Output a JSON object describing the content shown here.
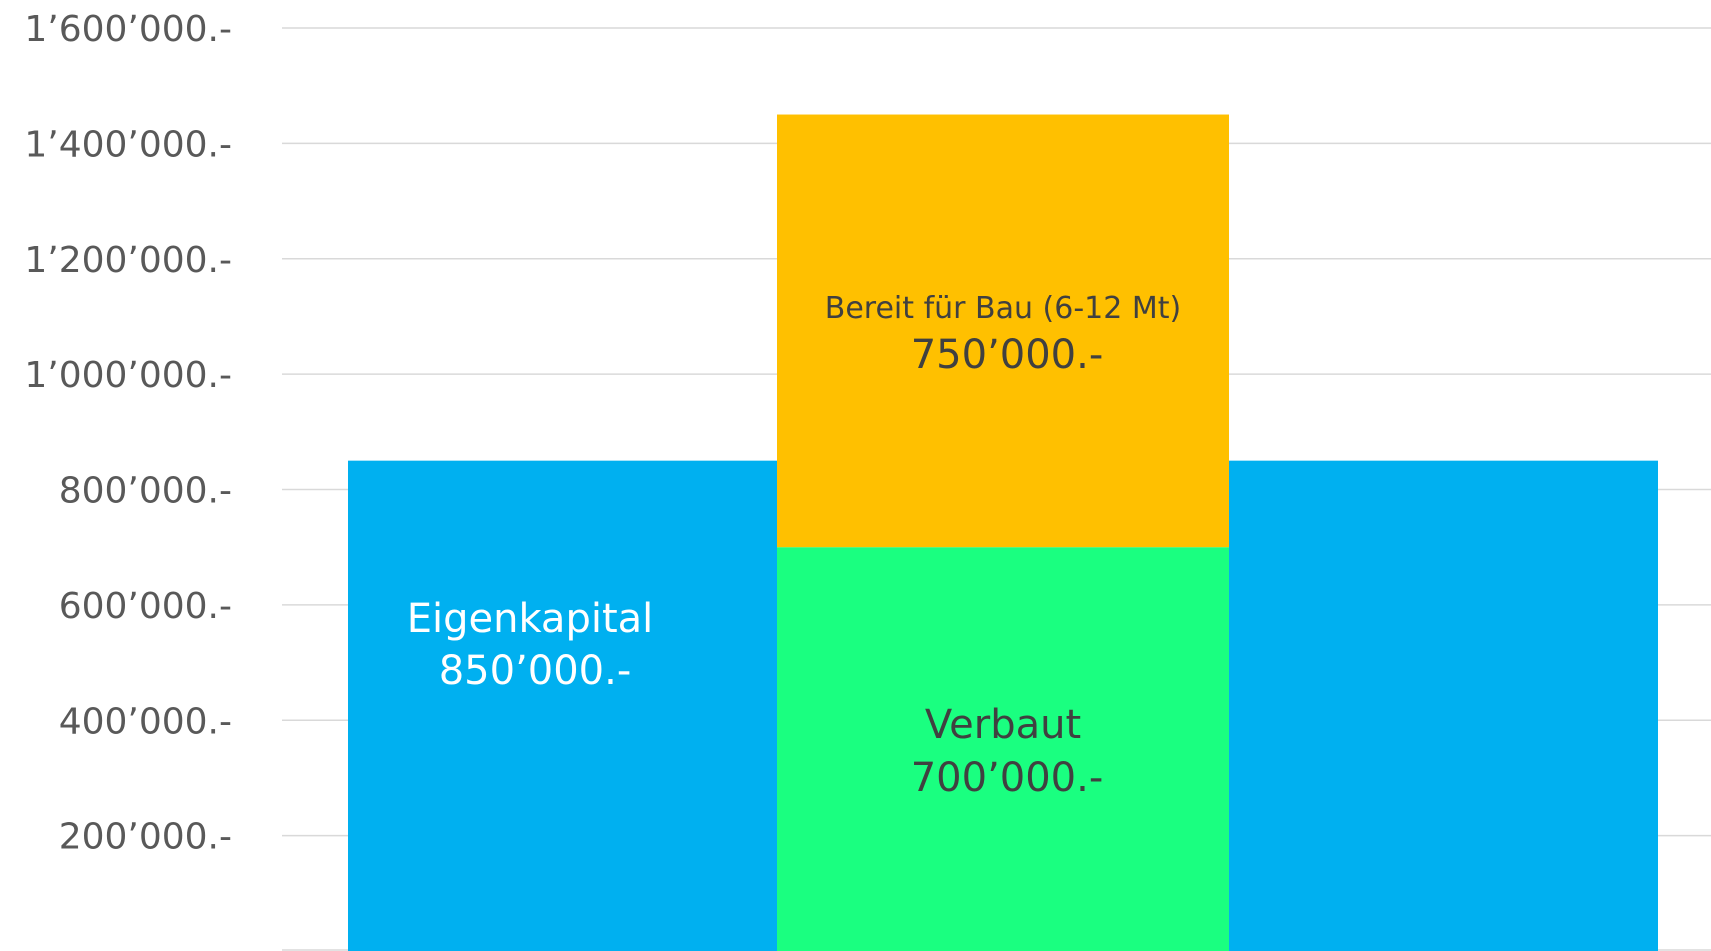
{
  "chart_data": {
    "type": "bar",
    "stacked": true,
    "grid": true,
    "title": "",
    "xlabel": "",
    "ylabel": "",
    "ylim": [
      0,
      1600000
    ],
    "yticks": [
      200000,
      400000,
      600000,
      800000,
      1000000,
      1200000,
      1400000,
      1600000
    ],
    "ytick_labels": [
      "200’000.-",
      "400’000.-",
      "600’000.-",
      "800’000.-",
      "1’000’000.-",
      "1’200’000.-",
      "1’400’000.-",
      "1’600’000.-"
    ],
    "bars": [
      {
        "segments": [
          {
            "value": 850000,
            "label": "Eigenkapital",
            "value_label": "850’000.-",
            "color": "#00B0F0"
          }
        ]
      },
      {
        "segments": [
          {
            "value": 700000,
            "label": "Verbaut",
            "value_label": "700’000.-",
            "color": "#1AFF80"
          },
          {
            "value": 750000,
            "label": "Bereit für Bau (6-12 Mt)",
            "value_label": "750’000.-",
            "color": "#FFC000"
          }
        ]
      },
      {
        "segments": [
          {
            "value": 850000,
            "color": "#00B0F0"
          }
        ]
      }
    ],
    "colors": {
      "gridline": "#D9D9D9",
      "tick_text": "#595959"
    }
  }
}
